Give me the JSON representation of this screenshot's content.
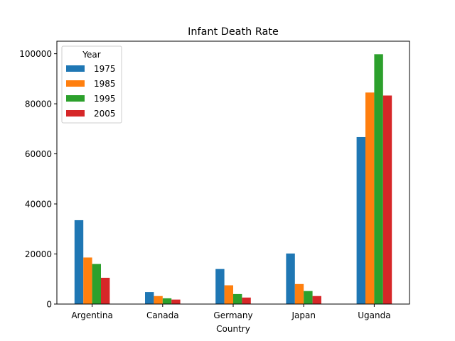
{
  "chart_data": {
    "type": "bar",
    "title": "Infant Death Rate",
    "xlabel": "Country",
    "ylabel": "",
    "categories": [
      "Argentina",
      "Canada",
      "Germany",
      "Japan",
      "Uganda"
    ],
    "series": [
      {
        "name": "1975",
        "color": "#1f77b4",
        "values": [
          33500,
          4800,
          14000,
          20200,
          66700
        ]
      },
      {
        "name": "1985",
        "color": "#ff7f0e",
        "values": [
          18600,
          3200,
          7500,
          8000,
          84500
        ]
      },
      {
        "name": "1995",
        "color": "#2ca02c",
        "values": [
          16000,
          2300,
          4000,
          5200,
          99800
        ]
      },
      {
        "name": "2005",
        "color": "#d62728",
        "values": [
          10500,
          1800,
          2600,
          3200,
          83300
        ]
      }
    ],
    "ylim": [
      0,
      105000
    ],
    "yticks": [
      0,
      20000,
      40000,
      60000,
      80000,
      100000
    ],
    "ytick_labels": [
      "0",
      "20000",
      "40000",
      "60000",
      "80000",
      "100000"
    ],
    "legend": {
      "title": "Year",
      "position": "top-left"
    },
    "grid": false
  }
}
